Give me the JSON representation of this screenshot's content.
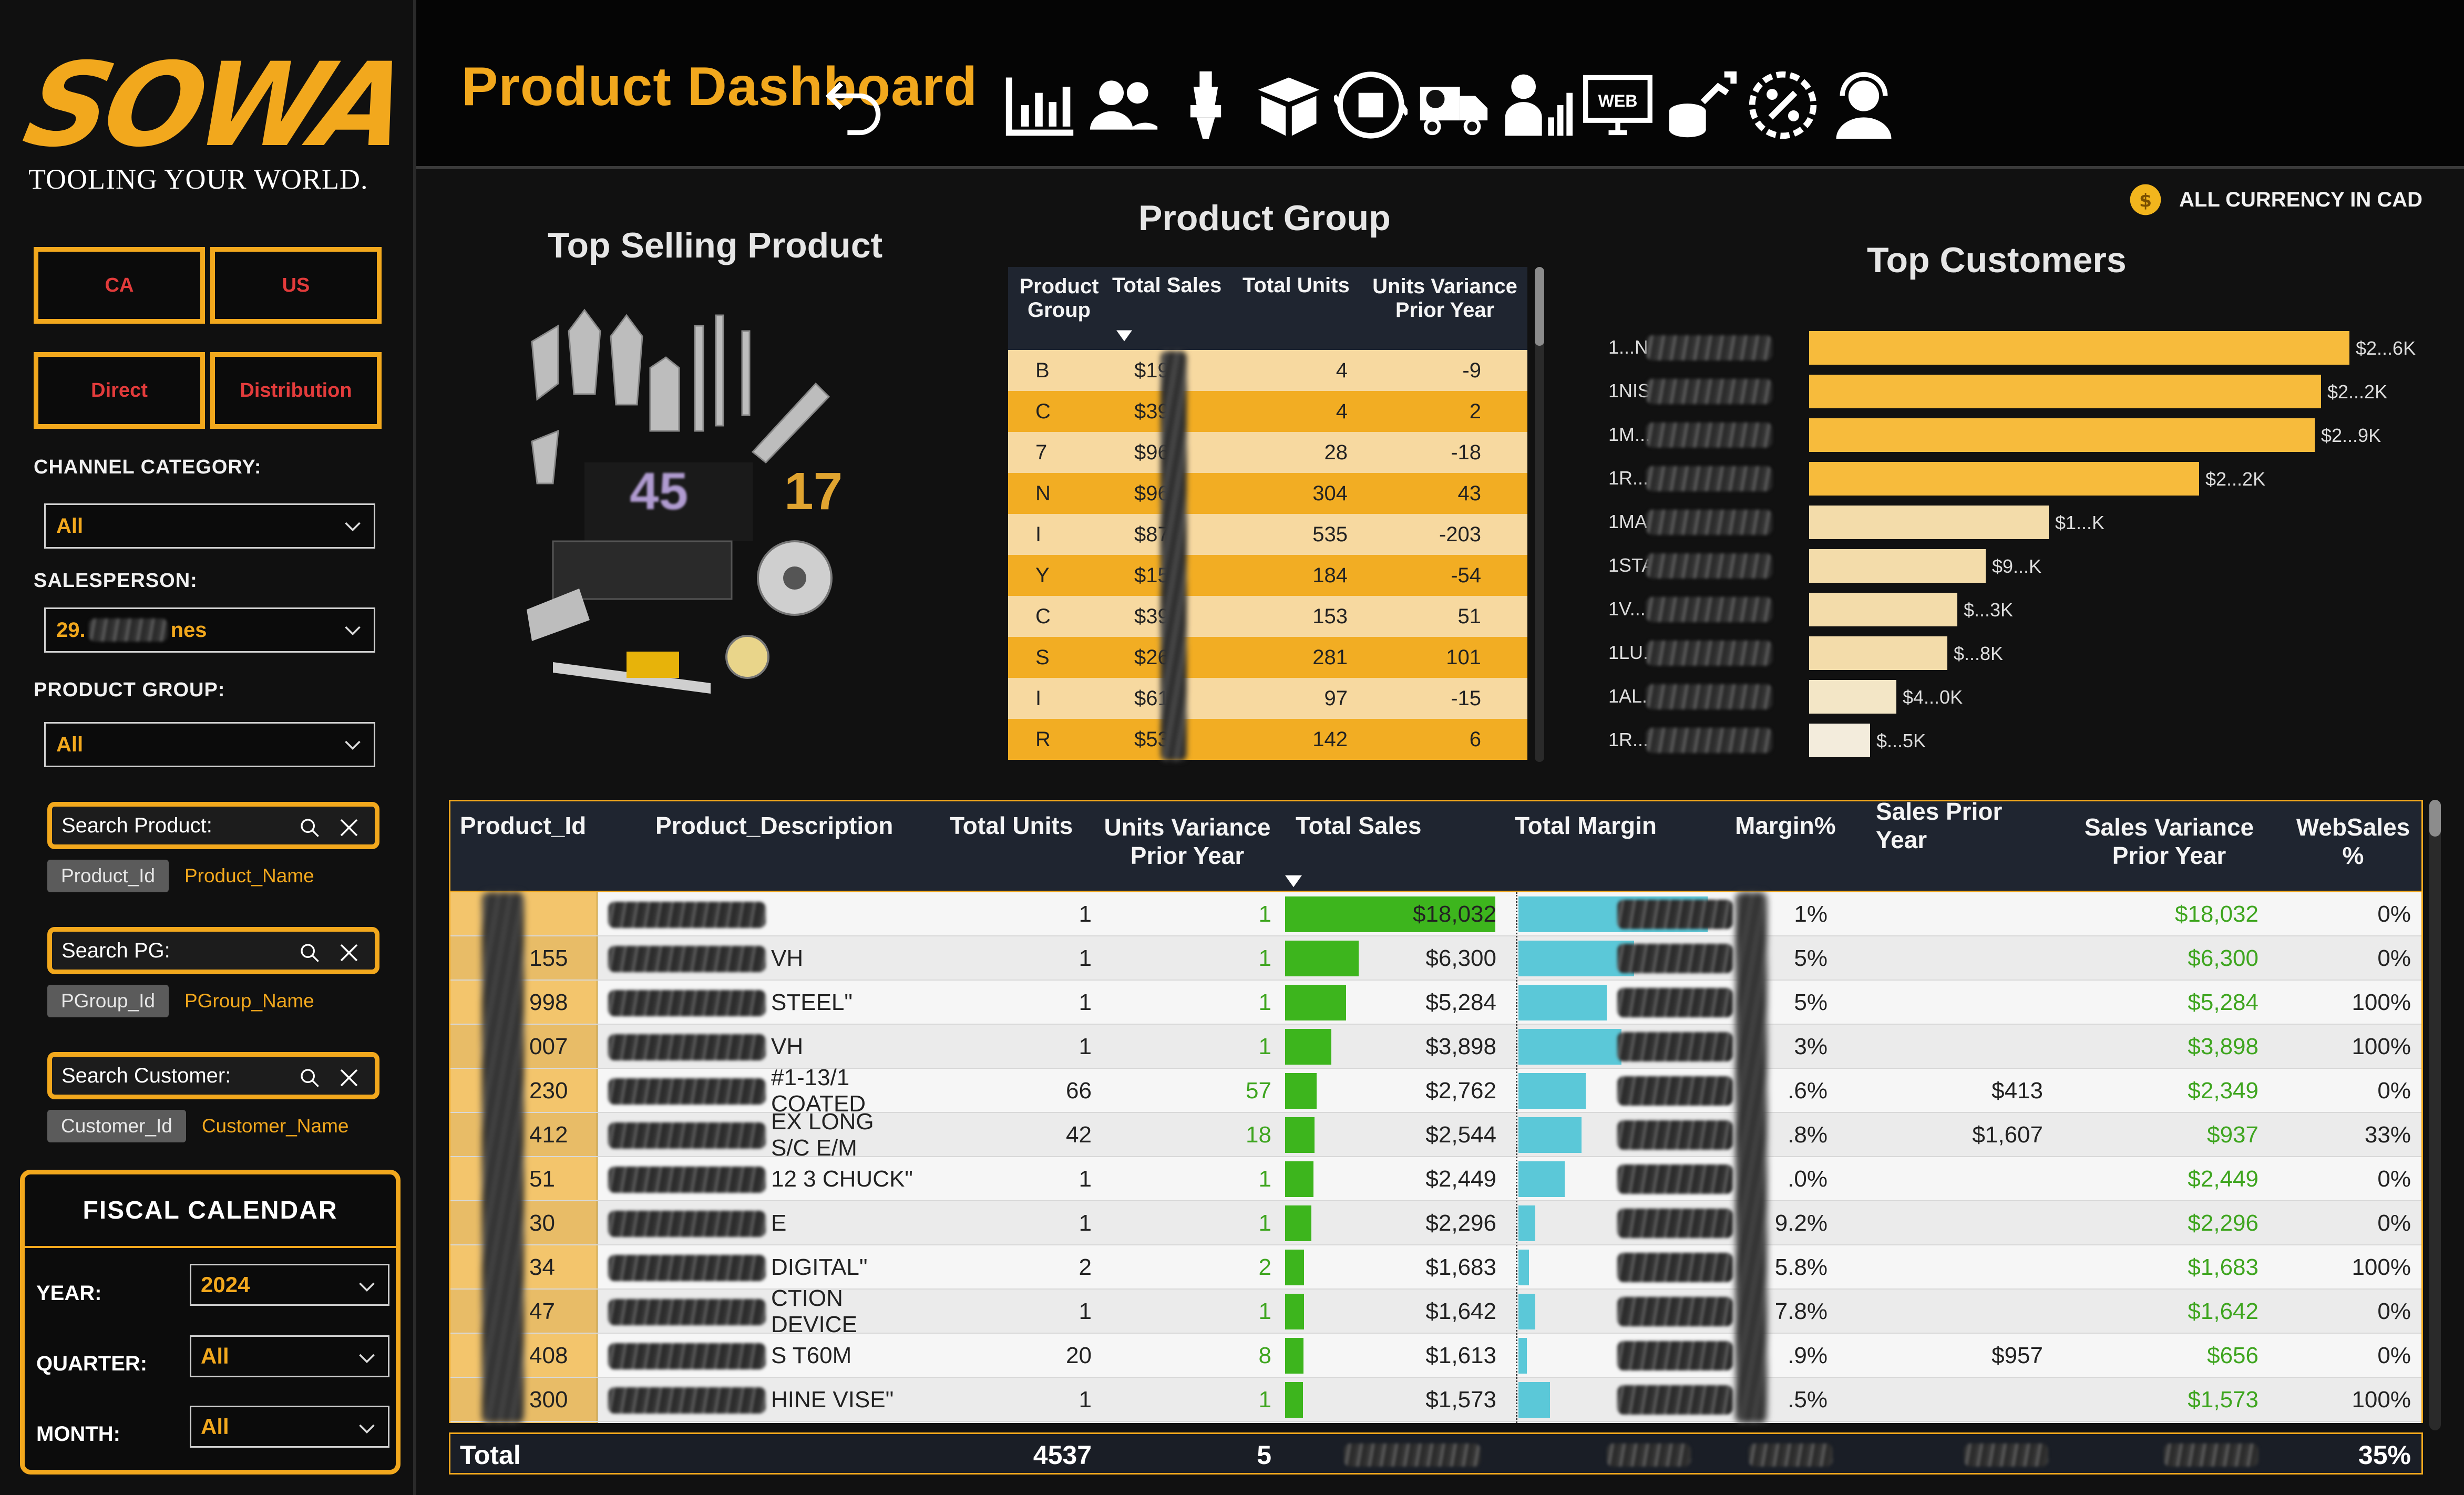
{
  "brand": {
    "name": "SOWA",
    "tagline": "TOOLING YOUR WORLD.",
    "color": "#f2a81d"
  },
  "filters": {
    "region_buttons": [
      "CA",
      "US"
    ],
    "channel_buttons": [
      "Direct",
      "Distribution"
    ],
    "channel_category": {
      "label": "CHANNEL CATEGORY:",
      "value": "All"
    },
    "salesperson": {
      "label": "SALESPERSON:",
      "value": "29.",
      "value_suffix": "nes"
    },
    "product_group": {
      "label": "PRODUCT GROUP:",
      "value": "All"
    }
  },
  "searches": [
    {
      "placeholder": "Search Product:",
      "tag": "Product_Id",
      "text": "Product_Name"
    },
    {
      "placeholder": "Search PG:",
      "tag": "PGroup_Id",
      "text": "PGroup_Name"
    },
    {
      "placeholder": "Search Customer:",
      "tag": "Customer_Id",
      "text": "Customer_Name"
    }
  ],
  "fiscal": {
    "title": "FISCAL CALENDAR",
    "year": {
      "label": "YEAR:",
      "value": "2024"
    },
    "quarter": {
      "label": "QUARTER:",
      "value": "All"
    },
    "month": {
      "label": "MONTH:",
      "value": "All"
    }
  },
  "header": {
    "title": "Product Dashboard",
    "nav_icons": [
      "undo-icon",
      "bar-chart-icon",
      "users-icon",
      "tool-holder-icon",
      "open-box-icon",
      "inventory-cycle-icon",
      "delivery-truck-icon",
      "sales-growth-icon",
      "web-icon",
      "revenue-growth-icon",
      "discount-icon",
      "support-agent-icon"
    ],
    "web_label": "WEB"
  },
  "currency_note": "ALL CURRENCY IN CAD",
  "top_selling": {
    "title": "Top Selling Product",
    "overlay_left": "45",
    "overlay_right": "17"
  },
  "product_group_table": {
    "title": "Product Group",
    "columns": [
      "Product Group",
      "Total Sales",
      "Total Units",
      "Units Variance Prior Year"
    ],
    "rows": [
      {
        "group": "B",
        "sales": "$192",
        "units": "4",
        "variance": "-9"
      },
      {
        "group": "C",
        "sales": "$398",
        "units": "4",
        "variance": "2"
      },
      {
        "group": "7",
        "sales": "$968",
        "units": "28",
        "variance": "-18"
      },
      {
        "group": "N",
        "sales": "$961",
        "units": "304",
        "variance": "43"
      },
      {
        "group": "I",
        "sales": "$875",
        "units": "535",
        "variance": "-203"
      },
      {
        "group": "Y",
        "sales": "$155",
        "units": "184",
        "variance": "-54"
      },
      {
        "group": "C",
        "sales": "$39",
        "units": "153",
        "variance": "51"
      },
      {
        "group": "S",
        "sales": "$26",
        "units": "281",
        "variance": "101"
      },
      {
        "group": "I",
        "sales": "$61",
        "units": "97",
        "variance": "-15"
      },
      {
        "group": "R",
        "sales": "$53",
        "units": "142",
        "variance": "6"
      }
    ]
  },
  "top_customers": {
    "title": "Top Customers",
    "chart_data": {
      "type": "bar",
      "orientation": "horizontal",
      "categories": [
        "1...N...",
        "1NIS...",
        "1M...",
        "1R...",
        "1MA...",
        "1STA...",
        "1V...",
        "1LU...TO...",
        "1AL...",
        "1R...T TO..."
      ],
      "value_labels": [
        "$2...6K",
        "$2...2K",
        "$2...9K",
        "$2...2K",
        "$1...K",
        "$9...K",
        "$...3K",
        "$...8K",
        "$4...0K",
        "$...5K"
      ],
      "values": [
        26.6,
        25.2,
        24.9,
        19.2,
        11.8,
        8.7,
        7.3,
        6.8,
        4.3,
        3.0
      ],
      "colors": [
        "#f7bb3c",
        "#f7bb3c",
        "#f7bb3c",
        "#f7bb3c",
        "#f3dcaa",
        "#f3dcaa",
        "#f3dcaa",
        "#f3dcaa",
        "#f3e6c6",
        "#f3ecdc"
      ]
    }
  },
  "detail_table": {
    "columns": [
      "Product_Id",
      "Product_Description",
      "Total Units",
      "Units Variance Prior Year",
      "Total Sales",
      "Total Margin",
      "Margin%",
      "Sales Prior Year",
      "Sales Variance Prior Year",
      "WebSales %"
    ],
    "rows": [
      {
        "id": "",
        "desc": "",
        "units": "1",
        "uvar": "1",
        "sales": "$18,032",
        "sales_frac": 1.0,
        "margin_frac": 0.9,
        "mpct": "1%",
        "prior": "",
        "svar": "$18,032",
        "web": "0%"
      },
      {
        "id": "155",
        "desc": "VH",
        "units": "1",
        "uvar": "1",
        "sales": "$6,300",
        "sales_frac": 0.35,
        "margin_frac": 0.55,
        "mpct": "5%",
        "prior": "",
        "svar": "$6,300",
        "web": "0%"
      },
      {
        "id": "998",
        "desc": "STEEL\"",
        "units": "1",
        "uvar": "1",
        "sales": "$5,284",
        "sales_frac": 0.29,
        "margin_frac": 0.42,
        "mpct": "5%",
        "prior": "",
        "svar": "$5,284",
        "web": "100%"
      },
      {
        "id": "007",
        "desc": "VH",
        "units": "1",
        "uvar": "1",
        "sales": "$3,898",
        "sales_frac": 0.22,
        "margin_frac": 0.49,
        "mpct": "3%",
        "prior": "",
        "svar": "$3,898",
        "web": "100%"
      },
      {
        "id": "230",
        "desc": "#1-13/1   COATED",
        "units": "66",
        "uvar": "57",
        "sales": "$2,762",
        "sales_frac": 0.15,
        "margin_frac": 0.32,
        "mpct": ".6%",
        "prior": "$413",
        "svar": "$2,349",
        "web": "0%"
      },
      {
        "id": "412",
        "desc": "EX LONG S/C E/M",
        "units": "42",
        "uvar": "18",
        "sales": "$2,544",
        "sales_frac": 0.14,
        "margin_frac": 0.3,
        "mpct": ".8%",
        "prior": "$1,607",
        "svar": "$937",
        "web": "33%"
      },
      {
        "id": "51",
        "desc": "12 3   CHUCK\"",
        "units": "1",
        "uvar": "1",
        "sales": "$2,449",
        "sales_frac": 0.135,
        "margin_frac": 0.22,
        "mpct": ".0%",
        "prior": "",
        "svar": "$2,449",
        "web": "0%"
      },
      {
        "id": "30",
        "desc": "E",
        "units": "1",
        "uvar": "1",
        "sales": "$2,296",
        "sales_frac": 0.125,
        "margin_frac": 0.08,
        "mpct": "9.2%",
        "prior": "",
        "svar": "$2,296",
        "web": "0%"
      },
      {
        "id": "34",
        "desc": "DIGITAL\"",
        "units": "2",
        "uvar": "2",
        "sales": "$1,683",
        "sales_frac": 0.09,
        "margin_frac": 0.05,
        "mpct": "5.8%",
        "prior": "",
        "svar": "$1,683",
        "web": "100%"
      },
      {
        "id": "47",
        "desc": "CTION DEVICE",
        "units": "1",
        "uvar": "1",
        "sales": "$1,642",
        "sales_frac": 0.09,
        "margin_frac": 0.08,
        "mpct": "7.8%",
        "prior": "",
        "svar": "$1,642",
        "web": "0%"
      },
      {
        "id": "408",
        "desc": "S T60M",
        "units": "20",
        "uvar": "8",
        "sales": "$1,613",
        "sales_frac": 0.088,
        "margin_frac": 0.04,
        "mpct": ".9%",
        "prior": "$957",
        "svar": "$656",
        "web": "0%"
      },
      {
        "id": "300",
        "desc": "HINE VISE\"",
        "units": "1",
        "uvar": "1",
        "sales": "$1,573",
        "sales_frac": 0.085,
        "margin_frac": 0.15,
        "mpct": ".5%",
        "prior": "",
        "svar": "$1,573",
        "web": "100%"
      }
    ],
    "total": {
      "label": "Total",
      "units": "4537",
      "uvar": "5",
      "web": "35%"
    }
  }
}
